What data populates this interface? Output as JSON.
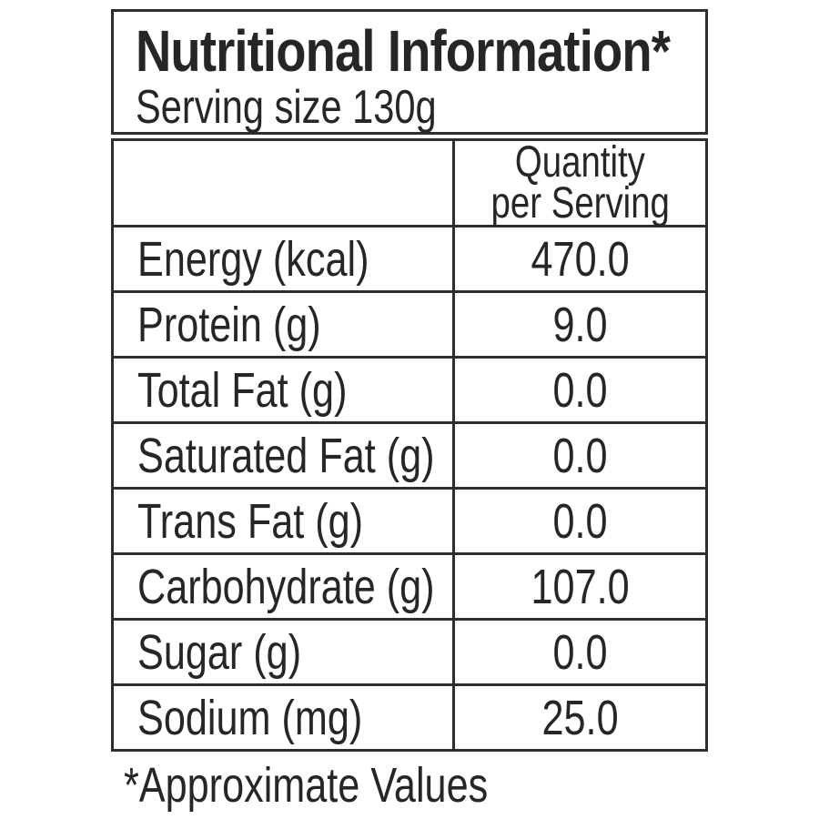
{
  "label": {
    "title": "Nutritional Information*",
    "serving_size": "Serving size 130g",
    "column_header": {
      "line1": "Quantity",
      "line2": "per Serving"
    },
    "rows": [
      {
        "name": "Energy (kcal)",
        "value": "470.0"
      },
      {
        "name": "Protein (g)",
        "value": "9.0"
      },
      {
        "name": "Total Fat (g)",
        "value": "0.0"
      },
      {
        "name": "Saturated Fat (g)",
        "value": "0.0"
      },
      {
        "name": "Trans Fat (g)",
        "value": "0.0"
      },
      {
        "name": "Carbohydrate (g)",
        "value": "107.0"
      },
      {
        "name": "Sugar (g)",
        "value": "0.0"
      },
      {
        "name": "Sodium (mg)",
        "value": "25.0"
      }
    ],
    "footnote": "*Approximate Values",
    "colors": {
      "text": "#262626",
      "border": "#2e2e2e",
      "background": "#ffffff"
    }
  }
}
